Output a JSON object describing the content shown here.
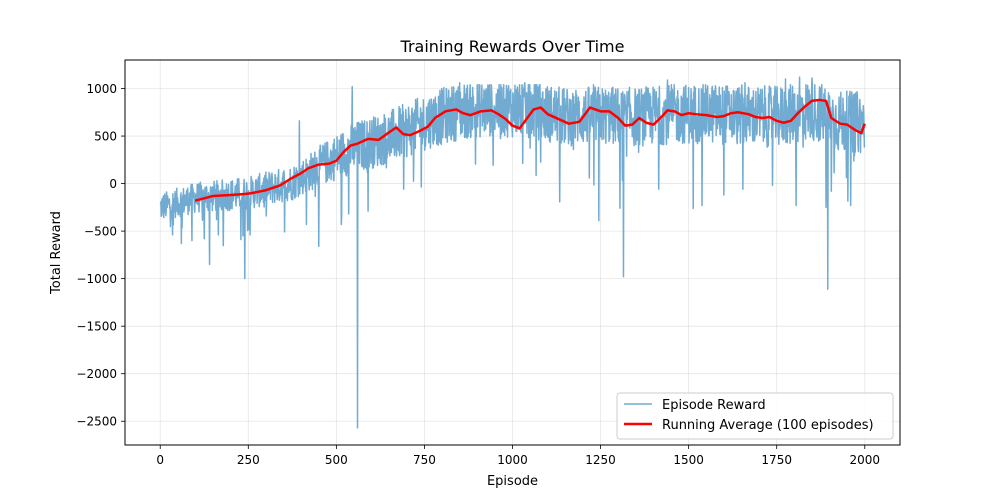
{
  "chart_data": {
    "type": "line",
    "title": "Training Rewards Over Time",
    "xlabel": "Episode",
    "ylabel": "Total Reward",
    "xlim": [
      -100,
      2100
    ],
    "ylim": [
      -2750,
      1300
    ],
    "xticks": [
      0,
      250,
      500,
      750,
      1000,
      1250,
      1500,
      1750,
      2000
    ],
    "yticks": [
      -2500,
      -2000,
      -1500,
      -1000,
      -500,
      0,
      500,
      1000
    ],
    "grid": true,
    "legend_position": "bottom-right",
    "series": [
      {
        "name": "Episode Reward",
        "color": "#72abd2",
        "line_width": 1.5,
        "style": "noisy",
        "trend": [
          [
            0,
            -250
          ],
          [
            100,
            -150
          ],
          [
            250,
            -100
          ],
          [
            375,
            10
          ],
          [
            460,
            200
          ],
          [
            500,
            280
          ],
          [
            550,
            380
          ],
          [
            625,
            460
          ],
          [
            700,
            560
          ],
          [
            775,
            680
          ],
          [
            850,
            760
          ],
          [
            950,
            800
          ],
          [
            1050,
            780
          ],
          [
            1150,
            700
          ],
          [
            1250,
            720
          ],
          [
            1350,
            700
          ],
          [
            1450,
            730
          ],
          [
            1550,
            740
          ],
          [
            1650,
            720
          ],
          [
            1750,
            700
          ],
          [
            1850,
            780
          ],
          [
            1925,
            650
          ],
          [
            2000,
            640
          ]
        ],
        "spread": [
          [
            0,
            150
          ],
          [
            400,
            190
          ],
          [
            550,
            270
          ],
          [
            800,
            300
          ],
          [
            2000,
            330
          ]
        ],
        "dips": [
          [
            35,
            -540
          ],
          [
            60,
            -630
          ],
          [
            90,
            -600
          ],
          [
            125,
            -580
          ],
          [
            140,
            -850
          ],
          [
            165,
            -540
          ],
          [
            235,
            -550
          ],
          [
            240,
            -1000
          ],
          [
            255,
            -540
          ],
          [
            415,
            -430
          ],
          [
            450,
            -660
          ],
          [
            535,
            -320
          ],
          [
            560,
            -2570
          ],
          [
            590,
            -290
          ],
          [
            1245,
            -390
          ],
          [
            1305,
            -260
          ],
          [
            1315,
            -980
          ],
          [
            1415,
            -60
          ],
          [
            1600,
            -120
          ],
          [
            1805,
            -230
          ],
          [
            1890,
            -250
          ],
          [
            1895,
            -1110
          ],
          [
            1905,
            -80
          ],
          [
            1960,
            -230
          ]
        ],
        "peaks": [
          [
            395,
            660
          ],
          [
            545,
            1020
          ],
          [
            850,
            1060
          ],
          [
            1035,
            1060
          ],
          [
            1230,
            1040
          ],
          [
            1440,
            1090
          ],
          [
            1660,
            1060
          ],
          [
            1775,
            1100
          ],
          [
            1815,
            1120
          ],
          [
            1850,
            1110
          ]
        ]
      },
      {
        "name": "Running Average (100 episodes)",
        "color": "#ff0000",
        "line_width": 2.5,
        "points": [
          [
            99,
            -180
          ],
          [
            130,
            -150
          ],
          [
            150,
            -130
          ],
          [
            200,
            -120
          ],
          [
            240,
            -110
          ],
          [
            260,
            -100
          ],
          [
            300,
            -70
          ],
          [
            340,
            -20
          ],
          [
            370,
            50
          ],
          [
            400,
            110
          ],
          [
            420,
            160
          ],
          [
            450,
            200
          ],
          [
            480,
            210
          ],
          [
            500,
            240
          ],
          [
            520,
            330
          ],
          [
            540,
            400
          ],
          [
            560,
            420
          ],
          [
            590,
            470
          ],
          [
            620,
            460
          ],
          [
            650,
            540
          ],
          [
            670,
            590
          ],
          [
            690,
            520
          ],
          [
            710,
            510
          ],
          [
            740,
            560
          ],
          [
            760,
            600
          ],
          [
            780,
            690
          ],
          [
            810,
            760
          ],
          [
            840,
            780
          ],
          [
            860,
            740
          ],
          [
            880,
            720
          ],
          [
            910,
            760
          ],
          [
            940,
            770
          ],
          [
            960,
            730
          ],
          [
            980,
            680
          ],
          [
            1000,
            610
          ],
          [
            1020,
            580
          ],
          [
            1040,
            680
          ],
          [
            1060,
            780
          ],
          [
            1080,
            800
          ],
          [
            1100,
            730
          ],
          [
            1130,
            680
          ],
          [
            1160,
            630
          ],
          [
            1190,
            650
          ],
          [
            1220,
            800
          ],
          [
            1250,
            760
          ],
          [
            1275,
            760
          ],
          [
            1300,
            690
          ],
          [
            1320,
            610
          ],
          [
            1340,
            620
          ],
          [
            1360,
            690
          ],
          [
            1380,
            640
          ],
          [
            1400,
            620
          ],
          [
            1420,
            690
          ],
          [
            1440,
            770
          ],
          [
            1460,
            760
          ],
          [
            1480,
            720
          ],
          [
            1500,
            740
          ],
          [
            1520,
            730
          ],
          [
            1550,
            720
          ],
          [
            1580,
            700
          ],
          [
            1600,
            710
          ],
          [
            1620,
            740
          ],
          [
            1640,
            750
          ],
          [
            1670,
            730
          ],
          [
            1690,
            700
          ],
          [
            1710,
            690
          ],
          [
            1730,
            700
          ],
          [
            1750,
            660
          ],
          [
            1770,
            640
          ],
          [
            1790,
            660
          ],
          [
            1810,
            740
          ],
          [
            1830,
            810
          ],
          [
            1850,
            870
          ],
          [
            1870,
            880
          ],
          [
            1890,
            870
          ],
          [
            1905,
            690
          ],
          [
            1930,
            630
          ],
          [
            1950,
            620
          ],
          [
            1970,
            570
          ],
          [
            1990,
            530
          ],
          [
            2000,
            630
          ]
        ]
      }
    ]
  }
}
